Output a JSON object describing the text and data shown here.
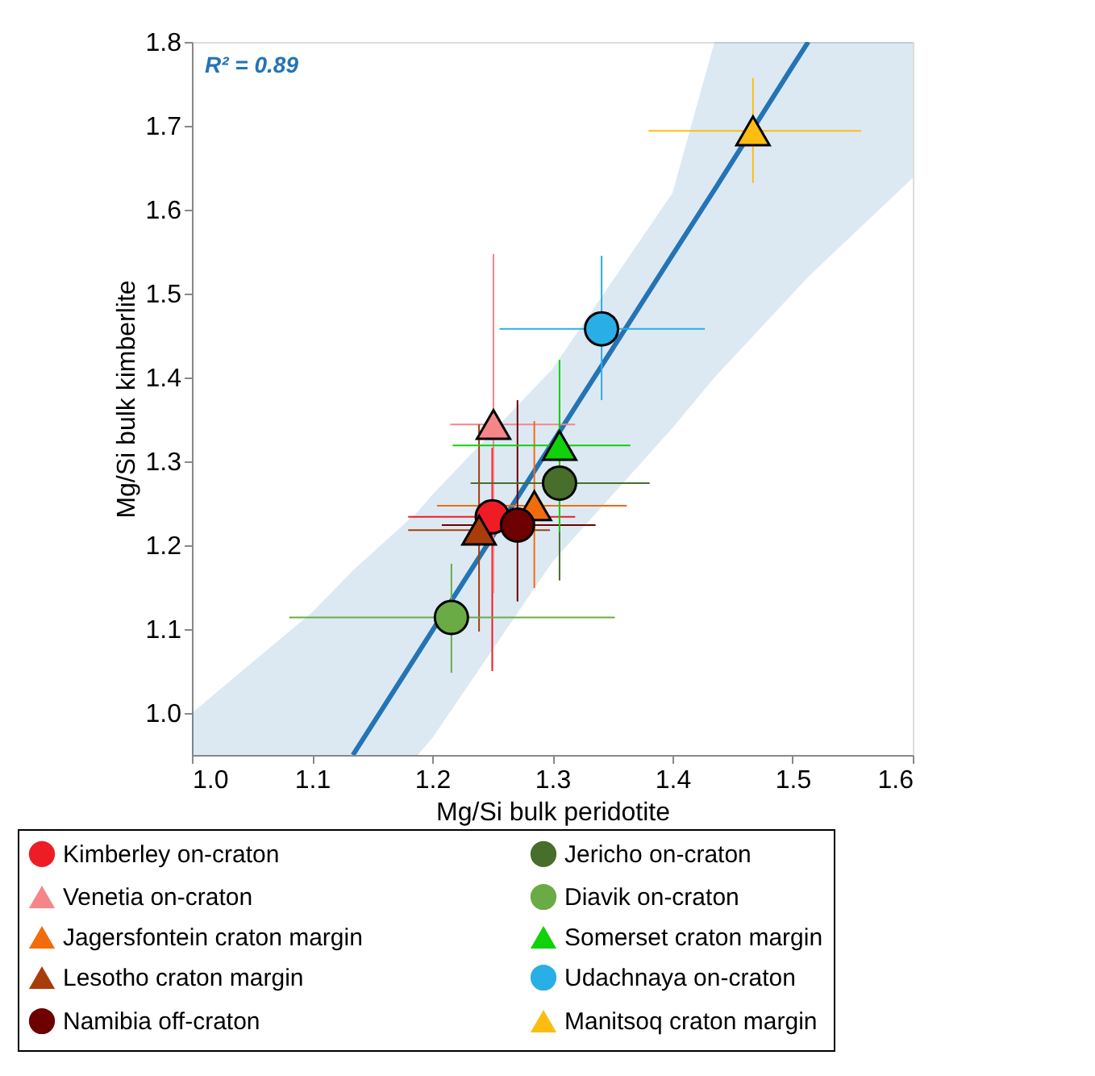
{
  "chart_data": {
    "type": "scatter",
    "xlabel": "Mg/Si bulk peridotite",
    "ylabel": "Mg/Si bulk kimberlite",
    "xlim": [
      1.0,
      1.6
    ],
    "ylim": [
      0.95,
      1.8
    ],
    "xticks": [
      {
        "value": 1,
        "label": "1.0"
      },
      1.1,
      1.2,
      1.3,
      1.4,
      1.5,
      1.6
    ],
    "yticks": [
      {
        "value": 1,
        "label": "1.0"
      },
      1.1,
      1.2,
      1.3,
      1.4,
      1.5,
      1.6,
      1.7,
      1.8
    ],
    "grid": false,
    "legend": "bottom",
    "annotations": [
      "R² = 0.89"
    ],
    "series": [
      {
        "type": "line",
        "color": "#2474b5",
        "x": [
          1.0,
          1.1,
          1.134,
          1.188,
          1.2,
          1.3,
          1.4,
          1.435,
          1.5,
          1.513,
          1.6
        ],
        "values": [
          null,
          null,
          0.95,
          1.071,
          1.098,
          1.322,
          1.546,
          1.624,
          1.771,
          1.8,
          null
        ],
        "lower": [
          0.95,
          0.95,
          0.95,
          0.95,
          0.97,
          1.18,
          1.34,
          1.4,
          1.5,
          1.52,
          1.638
        ],
        "upper": [
          1.0,
          1.12,
          1.17,
          1.24,
          1.26,
          1.41,
          1.62,
          1.8,
          1.8,
          1.8,
          1.8
        ]
      },
      {
        "name": "Kimberley on-craton",
        "color": "#ee1c25",
        "marker": "circle",
        "x": [
          1.25
        ],
        "values": [
          1.234
        ],
        "xerrors": [
          [
            1.18,
            1.319
          ]
        ],
        "errors": [
          [
            1.05,
            1.316
          ]
        ]
      },
      {
        "name": "Venetia on-craton",
        "color": "#f4868a",
        "marker": "triangle",
        "x": [
          1.251
        ],
        "values": [
          1.344
        ],
        "xerrors": [
          [
            1.215,
            1.319
          ]
        ],
        "errors": [
          [
            1.143,
            1.547
          ]
        ]
      },
      {
        "name": "Jagersfontein craton margin",
        "color": "#f26c0d",
        "marker": "triangle",
        "x": [
          1.285
        ],
        "values": [
          1.247
        ],
        "xerrors": [
          [
            1.204,
            1.362
          ]
        ],
        "errors": [
          [
            1.149,
            1.348
          ]
        ]
      },
      {
        "name": "Lesotho craton margin",
        "color": "#a83c0a",
        "marker": "triangle",
        "x": [
          1.239
        ],
        "values": [
          1.218
        ],
        "xerrors": [
          [
            1.18,
            1.298
          ]
        ],
        "errors": [
          [
            1.097,
            1.344
          ]
        ]
      },
      {
        "name": "Namibia off-craton",
        "color": "#6d0000",
        "marker": "circle",
        "x": [
          1.271
        ],
        "values": [
          1.224
        ],
        "xerrors": [
          [
            1.208,
            1.336
          ]
        ],
        "errors": [
          [
            1.133,
            1.373
          ]
        ]
      },
      {
        "name": "Jericho on-craton",
        "color": "#476e2a",
        "marker": "circle",
        "x": [
          1.306
        ],
        "values": [
          1.274
        ],
        "xerrors": [
          [
            1.232,
            1.381
          ]
        ],
        "errors": [
          [
            1.158,
            1.373
          ]
        ]
      },
      {
        "name": "Diavik on-craton",
        "color": "#6aab45",
        "marker": "circle",
        "x": [
          1.216
        ],
        "values": [
          1.114
        ],
        "xerrors": [
          [
            1.081,
            1.352
          ]
        ],
        "errors": [
          [
            1.048,
            1.178
          ]
        ]
      },
      {
        "name": "Somerset craton margin",
        "color": "#10d10a",
        "marker": "triangle",
        "x": [
          1.306
        ],
        "values": [
          1.319
        ],
        "xerrors": [
          [
            1.217,
            1.365
          ]
        ],
        "errors": [
          [
            1.216,
            1.421
          ]
        ]
      },
      {
        "name": "Udachnaya on-craton",
        "color": "#29aee5",
        "marker": "circle",
        "x": [
          1.341
        ],
        "values": [
          1.458
        ],
        "xerrors": [
          [
            1.256,
            1.427
          ]
        ],
        "errors": [
          [
            1.373,
            1.545
          ]
        ]
      },
      {
        "name": "Manitsoq craton margin",
        "color": "#fdbd10",
        "marker": "triangle",
        "x": [
          1.467
        ],
        "values": [
          1.694
        ],
        "xerrors": [
          [
            1.38,
            1.557
          ]
        ],
        "errors": [
          [
            1.632,
            1.757
          ]
        ]
      }
    ]
  }
}
